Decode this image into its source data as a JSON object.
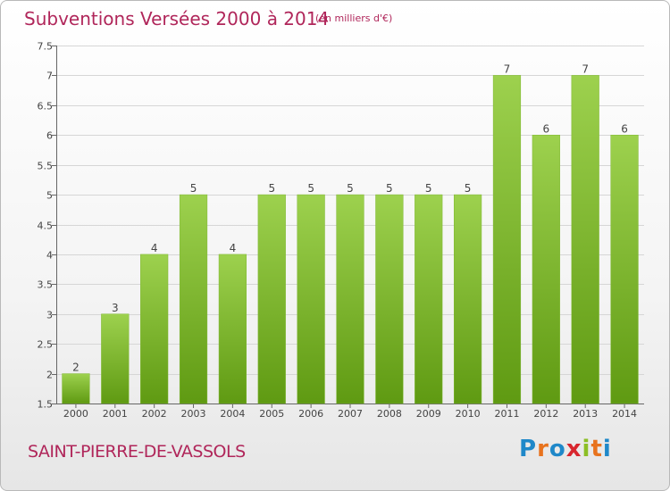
{
  "title": "Subventions Versées 2000 à 2014",
  "subtitle": "(en milliers d'€)",
  "commune": "SAINT-PIERRE-DE-VASSOLS",
  "logo": {
    "letters": [
      "P",
      "r",
      "o",
      "x",
      "i",
      "t",
      "i"
    ],
    "colors": [
      "#1f88c9",
      "#e8731e",
      "#1f88c9",
      "#d8262e",
      "#8cbf26",
      "#e8731e",
      "#1f88c9"
    ]
  },
  "chart_data": {
    "type": "bar",
    "categories": [
      "2000",
      "2001",
      "2002",
      "2003",
      "2004",
      "2005",
      "2006",
      "2007",
      "2008",
      "2009",
      "2010",
      "2011",
      "2012",
      "2013",
      "2014"
    ],
    "values": [
      2,
      3,
      4,
      5,
      4,
      5,
      5,
      5,
      5,
      5,
      5,
      7,
      6,
      7,
      6
    ],
    "value_labels": [
      "2",
      "3",
      "4",
      "5",
      "4",
      "5",
      "5",
      "5",
      "5",
      "5",
      "5",
      "7",
      "6",
      "7",
      "6"
    ],
    "y_ticks": [
      "1.5",
      "2",
      "2.5",
      "3",
      "3.5",
      "4",
      "4.5",
      "5",
      "5.5",
      "6",
      "6.5",
      "7",
      "7.5"
    ],
    "ylim": [
      1.5,
      7.5
    ],
    "grid": true,
    "bar_color_top": "#9dd14e",
    "bar_color_bottom": "#5f9a12"
  }
}
